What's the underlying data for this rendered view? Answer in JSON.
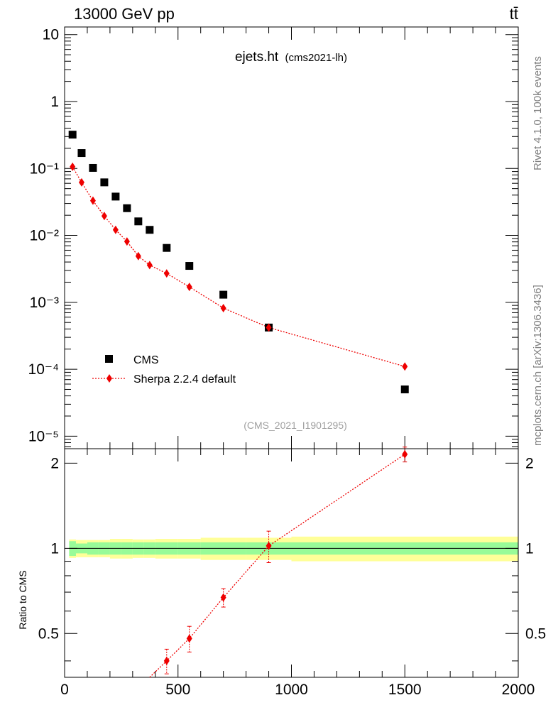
{
  "header": {
    "left_label": "13000 GeV pp",
    "right_label": "tt̄"
  },
  "side_labels": {
    "rivet": "Rivet 4.1.0,  100k events",
    "mcplots": "mcplots.cern.ch [arXiv:1306.3436]"
  },
  "plot": {
    "title_main": "ejets.ht",
    "title_sub": "(cms2021-lh)",
    "analysis_id": "(CMS_2021_I1901295)",
    "ratio_ylabel": "Ratio to CMS",
    "legend": [
      {
        "name": "CMS",
        "marker": "square",
        "color": "#000000"
      },
      {
        "name": "Sherpa 2.2.4 default",
        "marker": "diamond",
        "color": "#ee0000"
      }
    ]
  },
  "chart_data": [
    {
      "type": "scatter",
      "panel": "main",
      "yscale": "log",
      "xlim": [
        0,
        2000
      ],
      "ylim": [
        6.5e-06,
        13
      ],
      "y_ticks": [
        {
          "label": "10",
          "value": 10
        },
        {
          "label": "1",
          "value": 1
        },
        {
          "label": "10⁻¹",
          "value": 0.1
        },
        {
          "label": "10⁻²",
          "value": 0.01
        },
        {
          "label": "10⁻³",
          "value": 0.001
        },
        {
          "label": "10⁻⁴",
          "value": 0.0001
        },
        {
          "label": "10⁻⁵",
          "value": 1e-05
        }
      ],
      "series": [
        {
          "name": "CMS",
          "x": [
            35,
            75,
            125,
            175,
            225,
            275,
            325,
            375,
            450,
            550,
            700,
            900,
            1500
          ],
          "y": [
            0.32,
            0.17,
            0.102,
            0.062,
            0.038,
            0.0255,
            0.0162,
            0.0121,
            0.0065,
            0.0035,
            0.0013,
            0.00042,
            5e-05
          ]
        },
        {
          "name": "Sherpa 2.2.4 default",
          "x": [
            35,
            75,
            125,
            175,
            225,
            275,
            325,
            375,
            450,
            550,
            700,
            900,
            1500
          ],
          "y": [
            0.106,
            0.062,
            0.033,
            0.0195,
            0.0121,
            0.0081,
            0.0049,
            0.0036,
            0.0027,
            0.0017,
            0.00082,
            0.00042,
            0.00011
          ]
        }
      ]
    },
    {
      "type": "scatter",
      "panel": "ratio",
      "xlabel": "",
      "ylabel": "Ratio to CMS",
      "xlim": [
        0,
        2000
      ],
      "ylim": [
        0.35,
        2.25
      ],
      "x_ticks": [
        "0",
        "500",
        "1000",
        "1500",
        "2000"
      ],
      "y_ticks": [
        "0.5",
        "1",
        "2"
      ],
      "bands": {
        "x_edges": [
          20,
          50,
          100,
          150,
          200,
          250,
          300,
          350,
          400,
          500,
          600,
          800,
          1000,
          2000
        ],
        "inner": [
          0.06,
          0.04,
          0.05,
          0.05,
          0.05,
          0.05,
          0.05,
          0.05,
          0.05,
          0.05,
          0.05,
          0.05,
          0.05
        ],
        "outer": [
          0.075,
          0.07,
          0.07,
          0.07,
          0.08,
          0.08,
          0.075,
          0.075,
          0.08,
          0.08,
          0.09,
          0.09,
          0.1
        ],
        "inner_color": "#98fb98",
        "outer_color": "#ffff99"
      },
      "series": [
        {
          "name": "Sherpa 2.2.4 default / CMS",
          "x": [
            450,
            550,
            700,
            900,
            1500
          ],
          "y": [
            0.4,
            0.48,
            0.67,
            1.02,
            2.15
          ],
          "err": [
            0.04,
            0.05,
            0.05,
            0.13,
            0.13
          ]
        }
      ]
    }
  ]
}
